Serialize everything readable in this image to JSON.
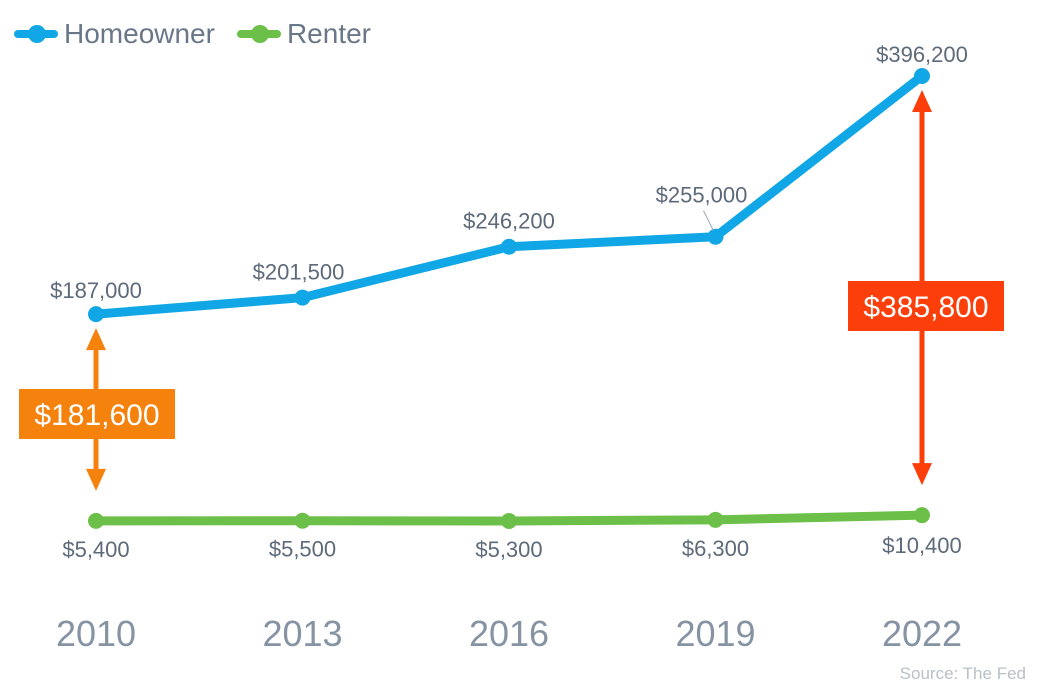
{
  "legend": [
    {
      "name": "Homeowner",
      "color": "#11a7e6"
    },
    {
      "name": "Renter",
      "color": "#6cc04a"
    }
  ],
  "source": "Source: The Fed",
  "chart_data": {
    "type": "line",
    "categories": [
      "2010",
      "2013",
      "2016",
      "2019",
      "2022"
    ],
    "series": [
      {
        "name": "Homeowner",
        "color": "#11a7e6",
        "values": [
          187000,
          201500,
          246200,
          255000,
          396200
        ],
        "labels": [
          "$187,000",
          "$201,500",
          "$246,200",
          "$255,000",
          "$396,200"
        ]
      },
      {
        "name": "Renter",
        "color": "#6cc04a",
        "values": [
          5400,
          5500,
          5300,
          6300,
          10400
        ],
        "labels": [
          "$5,400",
          "$5,500",
          "$5,300",
          "$6,300",
          "$10,400"
        ]
      }
    ],
    "ylim": [
      0,
      400000
    ],
    "grid": false,
    "legend_position": "top-left",
    "annotations": [
      {
        "category": "2010",
        "label": "$181,600",
        "color": "#f5820d"
      },
      {
        "category": "2022",
        "label": "$385,800",
        "color": "#fb3e0a"
      }
    ]
  }
}
